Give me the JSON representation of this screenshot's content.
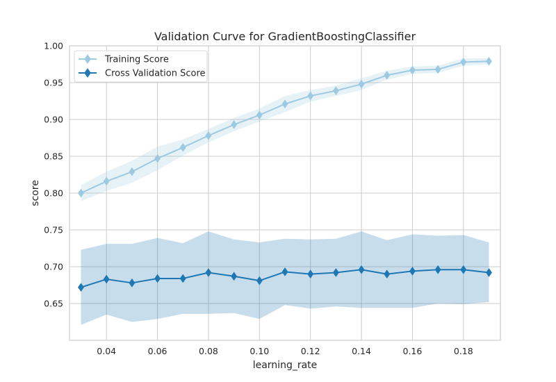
{
  "chart_data": {
    "type": "line",
    "title": "Validation Curve for GradientBoostingClassifier",
    "xlabel": "learning_rate",
    "ylabel": "score",
    "xlim": [
      0.0255,
      0.1945
    ],
    "ylim": [
      0.6,
      1.0
    ],
    "xticks": [
      0.04,
      0.06,
      0.08,
      0.1,
      0.12,
      0.14,
      0.16,
      0.18
    ],
    "xtick_labels": [
      "0.04",
      "0.06",
      "0.08",
      "0.10",
      "0.12",
      "0.14",
      "0.16",
      "0.18"
    ],
    "yticks": [
      0.65,
      0.7,
      0.75,
      0.8,
      0.85,
      0.9,
      0.95,
      1.0
    ],
    "ytick_labels": [
      "0.65",
      "0.70",
      "0.75",
      "0.80",
      "0.85",
      "0.90",
      "0.95",
      "1.00"
    ],
    "grid": true,
    "legend_position": "top-left",
    "x": [
      0.03,
      0.04,
      0.05,
      0.06,
      0.07,
      0.08,
      0.09,
      0.1,
      0.11,
      0.12,
      0.13,
      0.14,
      0.15,
      0.16,
      0.17,
      0.18,
      0.19
    ],
    "series": [
      {
        "name": "Training Score",
        "color": "#9ecae1",
        "values": [
          0.8,
          0.816,
          0.829,
          0.847,
          0.862,
          0.878,
          0.893,
          0.906,
          0.921,
          0.932,
          0.939,
          0.948,
          0.96,
          0.967,
          0.968,
          0.978,
          0.979
        ],
        "lower": [
          0.789,
          0.803,
          0.814,
          0.831,
          0.851,
          0.869,
          0.884,
          0.897,
          0.91,
          0.924,
          0.932,
          0.94,
          0.954,
          0.962,
          0.963,
          0.973,
          0.975
        ],
        "upper": [
          0.811,
          0.829,
          0.844,
          0.863,
          0.873,
          0.887,
          0.902,
          0.915,
          0.932,
          0.94,
          0.946,
          0.956,
          0.966,
          0.972,
          0.973,
          0.983,
          0.983
        ]
      },
      {
        "name": "Cross Validation Score",
        "color": "#1f77b4",
        "values": [
          0.672,
          0.683,
          0.678,
          0.684,
          0.684,
          0.692,
          0.687,
          0.681,
          0.693,
          0.69,
          0.692,
          0.696,
          0.69,
          0.694,
          0.696,
          0.696,
          0.692
        ],
        "lower": [
          0.621,
          0.635,
          0.625,
          0.629,
          0.636,
          0.636,
          0.637,
          0.629,
          0.648,
          0.643,
          0.646,
          0.644,
          0.644,
          0.644,
          0.65,
          0.649,
          0.652
        ],
        "upper": [
          0.723,
          0.731,
          0.731,
          0.739,
          0.732,
          0.748,
          0.737,
          0.733,
          0.738,
          0.737,
          0.738,
          0.748,
          0.736,
          0.744,
          0.742,
          0.743,
          0.733
        ]
      }
    ]
  }
}
